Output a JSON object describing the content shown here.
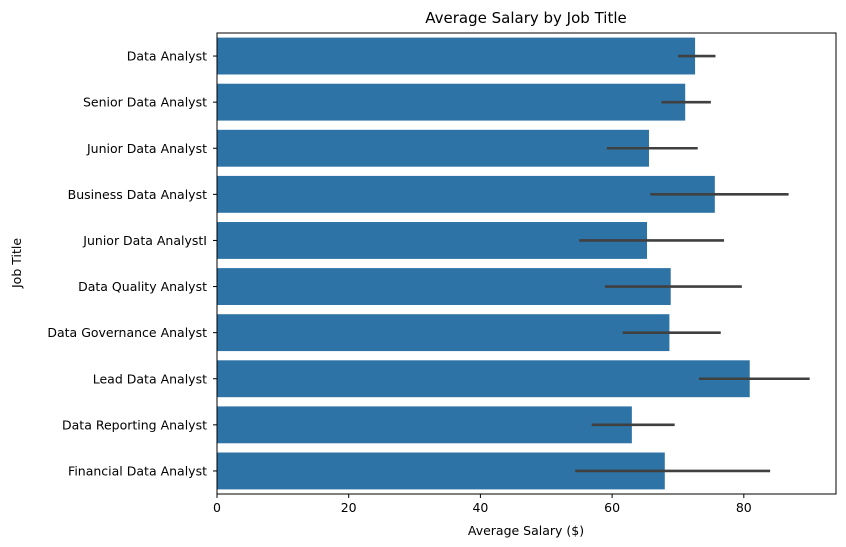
{
  "chart_data": {
    "type": "bar",
    "orientation": "horizontal",
    "title": "Average Salary by Job Title",
    "xlabel": "Average Salary ($)",
    "ylabel": "Job Title",
    "xlim": [
      0,
      94
    ],
    "xticks": [
      0,
      20,
      40,
      60,
      80
    ],
    "grid": false,
    "bar_color": "#2e73a6",
    "errorbar_color": "#404040",
    "categories": [
      "Data Analyst",
      "Senior Data Analyst",
      "Junior Data Analyst",
      "Business Data Analyst",
      "Junior Data AnalystI",
      "Data Quality Analyst",
      "Data Governance Analyst",
      "Lead Data Analyst",
      "Data Reporting Analyst",
      "Financial Data Analyst"
    ],
    "values": [
      72.6,
      71.1,
      65.6,
      75.6,
      65.3,
      68.9,
      68.7,
      80.9,
      63.0,
      68.0
    ],
    "ci_low": [
      70.0,
      67.5,
      59.2,
      65.8,
      55.0,
      58.9,
      61.6,
      73.2,
      56.9,
      54.4
    ],
    "ci_high": [
      75.7,
      75.0,
      73.0,
      86.8,
      77.0,
      79.7,
      76.5,
      90.0,
      69.5,
      84.0
    ]
  }
}
